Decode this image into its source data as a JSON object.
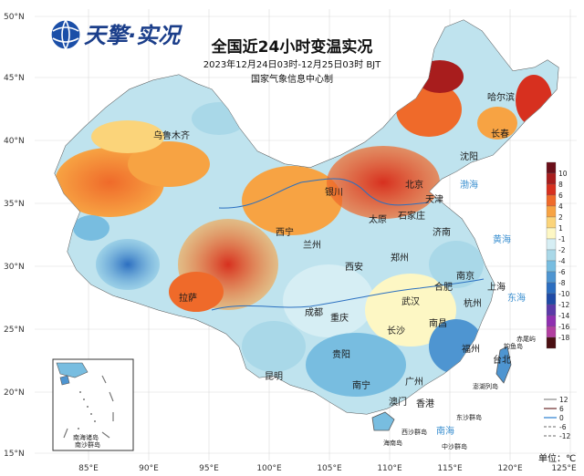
{
  "logo": {
    "text": "天擎·实况",
    "icon": "globe-icon"
  },
  "title": "全国近24小时变温实况",
  "time_range": "2023年12月24日03时-12月25日03时 BJT",
  "publisher": "国家气象信息中心制",
  "unit": "单位：℃",
  "lat_labels": [
    "50°N",
    "45°N",
    "40°N",
    "35°N",
    "30°N",
    "25°N",
    "20°N",
    "15°N"
  ],
  "lon_labels": [
    "85°E",
    "90°E",
    "95°E",
    "100°E",
    "105°E",
    "110°E",
    "115°E",
    "120°E",
    "125°E"
  ],
  "legend": {
    "labels": [
      "10",
      "8",
      "6",
      "4",
      "2",
      "1",
      "-1",
      "-2",
      "-4",
      "-6",
      "-8",
      "-10",
      "-12",
      "-14",
      "-16",
      "-18"
    ],
    "colors": [
      "#6b0f1a",
      "#a81d1d",
      "#d7301f",
      "#ef6a2a",
      "#f7a343",
      "#fbd47a",
      "#fdf7c4",
      "#d6eef4",
      "#a9d8e8",
      "#78bde0",
      "#4e95d1",
      "#2c6ec0",
      "#1f4aa6",
      "#5b3aa8",
      "#8f2fb0",
      "#b23fa0",
      "#4a0f12"
    ]
  },
  "isotherm_legend": [
    "12",
    "6",
    "0",
    "-6",
    "-12"
  ],
  "cities": [
    "哈尔滨",
    "长春",
    "沈阳",
    "天津",
    "北京",
    "石家庄",
    "太原",
    "济南",
    "银川",
    "西宁",
    "兰州",
    "郑州",
    "西安",
    "合肥",
    "南京",
    "上海",
    "杭州",
    "武汉",
    "成都",
    "重庆",
    "长沙",
    "南昌",
    "贵阳",
    "福州",
    "昆明",
    "南宁",
    "广州",
    "香港",
    "澳门",
    "台北",
    "乌鲁木齐",
    "拉萨"
  ],
  "seas": [
    "渤海",
    "黄海",
    "东海",
    "南海"
  ],
  "islands": [
    "赤尾屿",
    "钓鱼岛",
    "澎湖列岛",
    "东沙群岛",
    "西沙群岛",
    "中沙群岛",
    "海南岛"
  ],
  "inset_labels": [
    "南海诸岛",
    "南沙群岛"
  ]
}
